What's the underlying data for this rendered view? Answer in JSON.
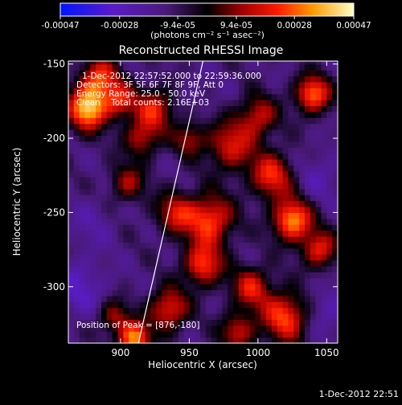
{
  "chart_data": {
    "type": "heatmap",
    "title": "Reconstructed RHESSI Image",
    "xlabel": "Heliocentric X (arcsec)",
    "ylabel": "Heliocentric Y (arcsec)",
    "xlim": [
      862,
      1058
    ],
    "ylim": [
      -338,
      -148
    ],
    "x_ticks": [
      900,
      950,
      1000,
      1050
    ],
    "y_ticks": [
      -150,
      -200,
      -250,
      -300
    ],
    "colorbar": {
      "min": -0.00047,
      "max": 0.00047,
      "ticks": [
        "-0.00047",
        "-0.00028",
        "-9.4e-05",
        "9.4e-05",
        "0.00028",
        "0.00047"
      ],
      "tick_values": [
        -0.00047,
        -0.00028,
        -9.4e-05,
        9.4e-05,
        0.00028,
        0.00047
      ],
      "unit_label": "(photons cm⁻² s⁻¹ asec⁻²)"
    },
    "annotations": [
      "1-Dec-2012 22:57:52.000 to 22:59:36.000",
      "Detectors: 3F 5F 6F 7F 8F 9F, Att 0",
      "Energy Range: 25.0 - 50.0 keV",
      "Clean    Total counts: 2.16E+03",
      "Position of Peak = [876,-180]"
    ],
    "peak": {
      "x": 876,
      "y": -180
    },
    "limb_line": [
      {
        "x": 913,
        "y": -338
      },
      {
        "x": 960,
        "y": -148
      }
    ],
    "grid": false,
    "blobs": [
      {
        "x": 876,
        "y": -180,
        "v": 0.00045,
        "s": 10
      },
      {
        "x": 885,
        "y": -160,
        "v": 0.0003,
        "s": 10
      },
      {
        "x": 900,
        "y": -175,
        "v": 0.00022,
        "s": 8
      },
      {
        "x": 925,
        "y": -180,
        "v": 0.00025,
        "s": 10
      },
      {
        "x": 915,
        "y": -200,
        "v": 0.0002,
        "s": 9
      },
      {
        "x": 905,
        "y": -230,
        "v": 0.00018,
        "s": 9
      },
      {
        "x": 940,
        "y": -250,
        "v": 0.00022,
        "s": 10
      },
      {
        "x": 965,
        "y": -255,
        "v": 0.00032,
        "s": 12
      },
      {
        "x": 980,
        "y": -205,
        "v": 0.00024,
        "s": 12
      },
      {
        "x": 1000,
        "y": -185,
        "v": 0.00022,
        "s": 10
      },
      {
        "x": 1010,
        "y": -225,
        "v": 0.00028,
        "s": 11
      },
      {
        "x": 1025,
        "y": -255,
        "v": 0.0004,
        "s": 10
      },
      {
        "x": 1040,
        "y": -170,
        "v": 0.00036,
        "s": 9
      },
      {
        "x": 1045,
        "y": -275,
        "v": 0.00026,
        "s": 9
      },
      {
        "x": 960,
        "y": -285,
        "v": 0.0003,
        "s": 10
      },
      {
        "x": 995,
        "y": -300,
        "v": 0.00024,
        "s": 10
      },
      {
        "x": 935,
        "y": -315,
        "v": 0.00028,
        "s": 10
      },
      {
        "x": 1020,
        "y": -320,
        "v": 0.00032,
        "s": 12
      },
      {
        "x": 910,
        "y": -335,
        "v": 0.0004,
        "s": 8
      },
      {
        "x": 895,
        "y": -320,
        "v": 0.00018,
        "s": 8
      },
      {
        "x": 985,
        "y": -330,
        "v": 0.00022,
        "s": 9
      },
      {
        "x": 950,
        "y": -200,
        "v": 0.00018,
        "s": 8
      },
      {
        "x": 870,
        "y": -300,
        "v": -0.0002,
        "s": 14
      },
      {
        "x": 880,
        "y": -255,
        "v": -0.00014,
        "s": 12
      },
      {
        "x": 1045,
        "y": -225,
        "v": -0.00016,
        "s": 12
      },
      {
        "x": 1050,
        "y": -315,
        "v": -0.00018,
        "s": 12
      },
      {
        "x": 955,
        "y": -170,
        "v": -0.0001,
        "s": 10
      }
    ]
  },
  "footer": {
    "timestamp": "1-Dec-2012 22:51"
  }
}
